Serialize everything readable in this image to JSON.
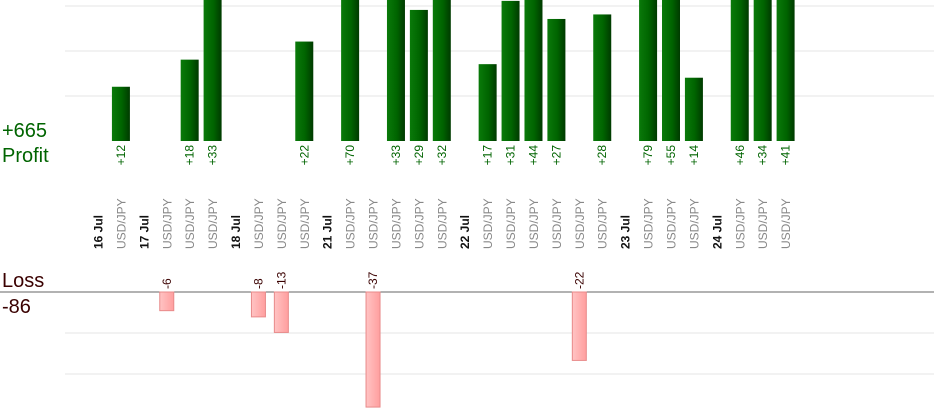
{
  "summary": {
    "profit_total": "+665",
    "profit_label": "Profit",
    "loss_label": "Loss",
    "loss_total": "-86"
  },
  "colors": {
    "profit_bar": "#006400",
    "profit_text": "#006400",
    "loss_bar": "#ffb3b3",
    "loss_text": "#3a0000",
    "date_text": "#111111",
    "pair_text": "#888888",
    "grid": "#e6e6e6"
  },
  "chart_data": {
    "type": "bar",
    "note_units": "pips",
    "columns": [
      {
        "kind": "date",
        "label": "16 Jul"
      },
      {
        "kind": "trade",
        "pair": "USD/JPY",
        "value": 12,
        "label": "+12"
      },
      {
        "kind": "date",
        "label": "17 Jul"
      },
      {
        "kind": "trade",
        "pair": "USD/JPY",
        "value": -6,
        "label": "-6"
      },
      {
        "kind": "trade",
        "pair": "USD/JPY",
        "value": 18,
        "label": "+18"
      },
      {
        "kind": "trade",
        "pair": "USD/JPY",
        "value": 33,
        "label": "+33"
      },
      {
        "kind": "date",
        "label": "18 Jul"
      },
      {
        "kind": "trade",
        "pair": "USD/JPY",
        "value": -8,
        "label": "-8"
      },
      {
        "kind": "trade",
        "pair": "USD/JPY",
        "value": -13,
        "label": "-13"
      },
      {
        "kind": "trade",
        "pair": "USD/JPY",
        "value": 22,
        "label": "+22"
      },
      {
        "kind": "date",
        "label": "21 Jul"
      },
      {
        "kind": "trade",
        "pair": "USD/JPY",
        "value": 70,
        "label": "+70"
      },
      {
        "kind": "trade",
        "pair": "USD/JPY",
        "value": -37,
        "label": "-37"
      },
      {
        "kind": "trade",
        "pair": "USD/JPY",
        "value": 33,
        "label": "+33"
      },
      {
        "kind": "trade",
        "pair": "USD/JPY",
        "value": 29,
        "label": "+29"
      },
      {
        "kind": "trade",
        "pair": "USD/JPY",
        "value": 32,
        "label": "+32"
      },
      {
        "kind": "date",
        "label": "22 Jul"
      },
      {
        "kind": "trade",
        "pair": "USD/JPY",
        "value": 17,
        "label": "+17"
      },
      {
        "kind": "trade",
        "pair": "USD/JPY",
        "value": 31,
        "label": "+31"
      },
      {
        "kind": "trade",
        "pair": "USD/JPY",
        "value": 44,
        "label": "+44"
      },
      {
        "kind": "trade",
        "pair": "USD/JPY",
        "value": 27,
        "label": "+27"
      },
      {
        "kind": "trade",
        "pair": "USD/JPY",
        "value": -22,
        "label": "-22"
      },
      {
        "kind": "trade",
        "pair": "USD/JPY",
        "value": 28,
        "label": "+28"
      },
      {
        "kind": "date",
        "label": "23 Jul"
      },
      {
        "kind": "trade",
        "pair": "USD/JPY",
        "value": 79,
        "label": "+79"
      },
      {
        "kind": "trade",
        "pair": "USD/JPY",
        "value": 55,
        "label": "+55"
      },
      {
        "kind": "trade",
        "pair": "USD/JPY",
        "value": 14,
        "label": "+14"
      },
      {
        "kind": "date",
        "label": "24 Jul"
      },
      {
        "kind": "trade",
        "pair": "USD/JPY",
        "value": 46,
        "label": "+46"
      },
      {
        "kind": "trade",
        "pair": "USD/JPY",
        "value": 34,
        "label": "+34"
      },
      {
        "kind": "trade",
        "pair": "USD/JPY",
        "value": 41,
        "label": "+41"
      }
    ],
    "profit_ylim": [
      0,
      30
    ],
    "loss_ylim": [
      -40,
      0
    ],
    "grid": true
  }
}
